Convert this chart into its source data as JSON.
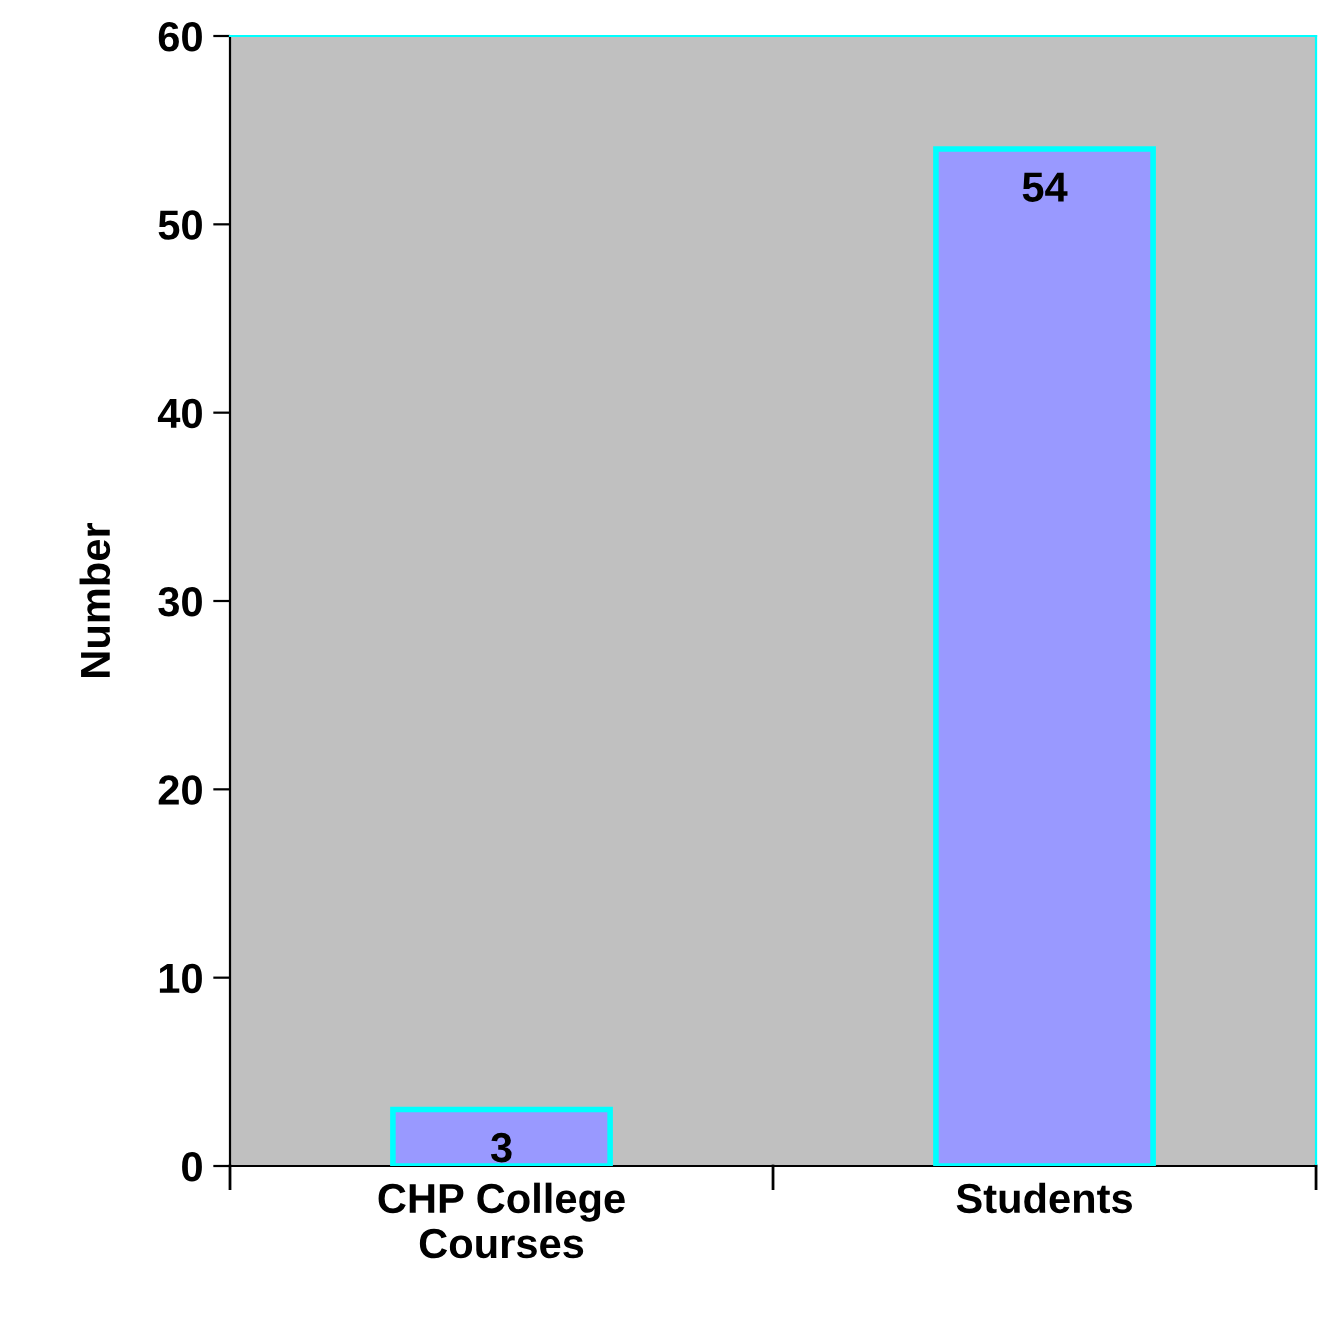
{
  "chart_data": {
    "type": "bar",
    "ylabel": "Number",
    "categories": [
      "CHP College\nCourses",
      "Students"
    ],
    "values": [
      3,
      54
    ],
    "color": "#9999ff",
    "ylim": [
      0,
      60
    ],
    "yticks": [
      0,
      10,
      20,
      30,
      40,
      50,
      60
    ],
    "grid": false,
    "data_labels": true
  }
}
